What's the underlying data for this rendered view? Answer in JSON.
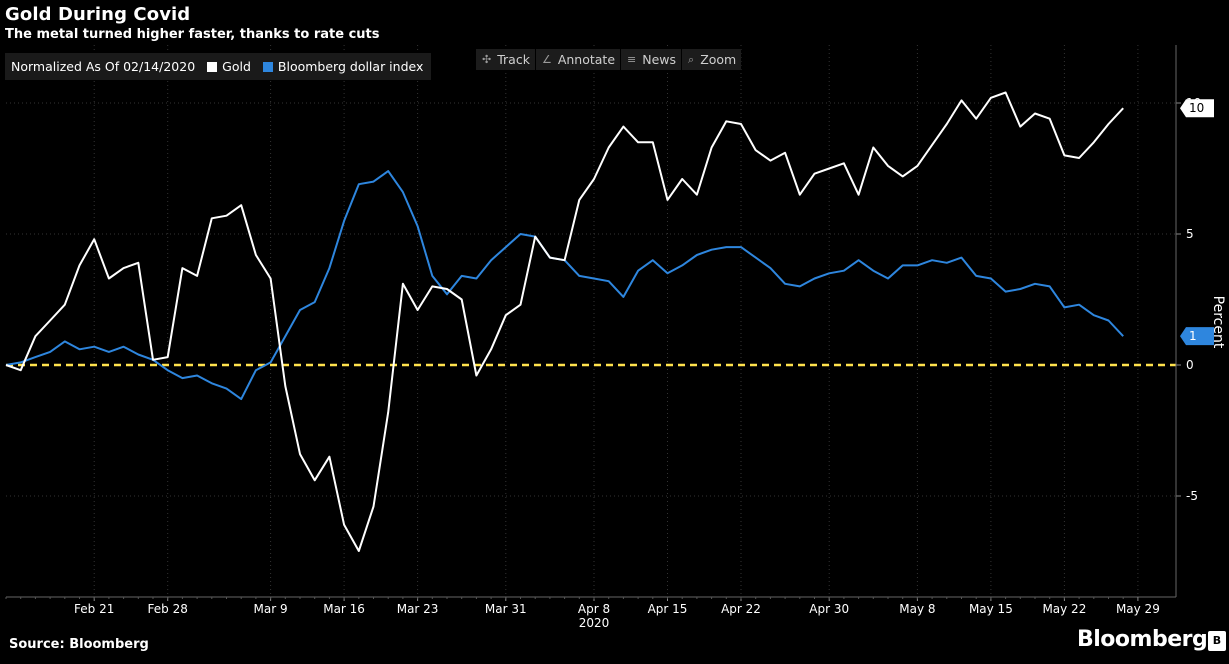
{
  "header": {
    "title": "Gold During Covid",
    "subtitle": "The metal turned higher faster, thanks to rate cuts"
  },
  "legend": {
    "normalized_label": "Normalized As Of 02/14/2020",
    "items": [
      {
        "label": "Gold",
        "color": "#ffffff"
      },
      {
        "label": "Bloomberg dollar index",
        "color": "#2e86de"
      }
    ]
  },
  "toolbar": {
    "items": [
      {
        "label": "Track",
        "icon": "crosshair-icon",
        "glyph": "✣"
      },
      {
        "label": "Annotate",
        "icon": "pencil-icon",
        "glyph": "∠"
      },
      {
        "label": "News",
        "icon": "list-icon",
        "glyph": "≡"
      },
      {
        "label": "Zoom",
        "icon": "search-icon",
        "glyph": "⌕"
      }
    ]
  },
  "footer": {
    "source": "Source: Bloomberg",
    "brand": "Bloomberg",
    "badge": "B"
  },
  "chart_data": {
    "type": "line",
    "title": "Gold During Covid",
    "subtitle": "The metal turned higher faster, thanks to rate cuts",
    "ylabel": "Percent",
    "ylim": [
      -9,
      12
    ],
    "yticks": [
      -5,
      0,
      5,
      10
    ],
    "grid": true,
    "legend_placement": "top-left",
    "zero_line_color": "#ffe24d",
    "x_tick_labels": [
      "Feb 21",
      "Feb 28",
      "Mar 9",
      "Mar 16",
      "Mar 23",
      "Mar 31",
      "Apr 8",
      "Apr 15",
      "Apr 22",
      "Apr 30",
      "May 8",
      "May 15",
      "May 22",
      "May 29"
    ],
    "x_tick_index": [
      6,
      11,
      18,
      23,
      28,
      34,
      40,
      45,
      50,
      56,
      62,
      67,
      72,
      77
    ],
    "year_label": "2020",
    "year_label_index": 40,
    "series": [
      {
        "name": "Gold",
        "color": "#ffffff",
        "last_value_label": "10",
        "values": [
          0,
          -0.2,
          1.1,
          1.7,
          2.3,
          3.8,
          4.8,
          3.3,
          3.7,
          3.9,
          0.2,
          0.3,
          3.7,
          3.4,
          5.6,
          5.7,
          6.1,
          4.2,
          3.3,
          -0.8,
          -3.4,
          -4.4,
          -3.5,
          -6.1,
          -7.1,
          -5.4,
          -1.8,
          3.1,
          2.1,
          3.0,
          2.9,
          2.5,
          -0.4,
          0.6,
          1.9,
          2.3,
          4.9,
          4.1,
          4.0,
          6.3,
          7.1,
          8.3,
          9.1,
          8.5,
          8.5,
          6.3,
          7.1,
          6.5,
          8.3,
          9.3,
          9.2,
          8.2,
          7.8,
          8.1,
          6.5,
          7.3,
          7.5,
          7.7,
          6.5,
          8.3,
          7.6,
          7.2,
          7.6,
          8.4,
          9.2,
          10.1,
          9.4,
          10.2,
          10.4,
          9.1,
          9.6,
          9.4,
          8.0,
          7.9,
          8.5,
          9.2,
          9.8
        ]
      },
      {
        "name": "Bloomberg dollar index",
        "color": "#2e86de",
        "last_value_label": "1",
        "values": [
          0,
          0.1,
          0.3,
          0.5,
          0.9,
          0.6,
          0.7,
          0.5,
          0.7,
          0.4,
          0.2,
          -0.2,
          -0.5,
          -0.4,
          -0.7,
          -0.9,
          -1.3,
          -0.2,
          0.1,
          1.1,
          2.1,
          2.4,
          3.7,
          5.5,
          6.9,
          7.0,
          7.4,
          6.6,
          5.3,
          3.4,
          2.7,
          3.4,
          3.3,
          4.0,
          4.5,
          5.0,
          4.9,
          4.1,
          4.0,
          3.4,
          3.3,
          3.2,
          2.6,
          3.6,
          4.0,
          3.5,
          3.8,
          4.2,
          4.4,
          4.5,
          4.5,
          4.1,
          3.7,
          3.1,
          3.0,
          3.3,
          3.5,
          3.6,
          4.0,
          3.6,
          3.3,
          3.8,
          3.8,
          4.0,
          3.9,
          4.1,
          3.4,
          3.3,
          2.8,
          2.9,
          3.1,
          3.0,
          2.2,
          2.3,
          1.9,
          1.7,
          1.1
        ]
      }
    ]
  }
}
